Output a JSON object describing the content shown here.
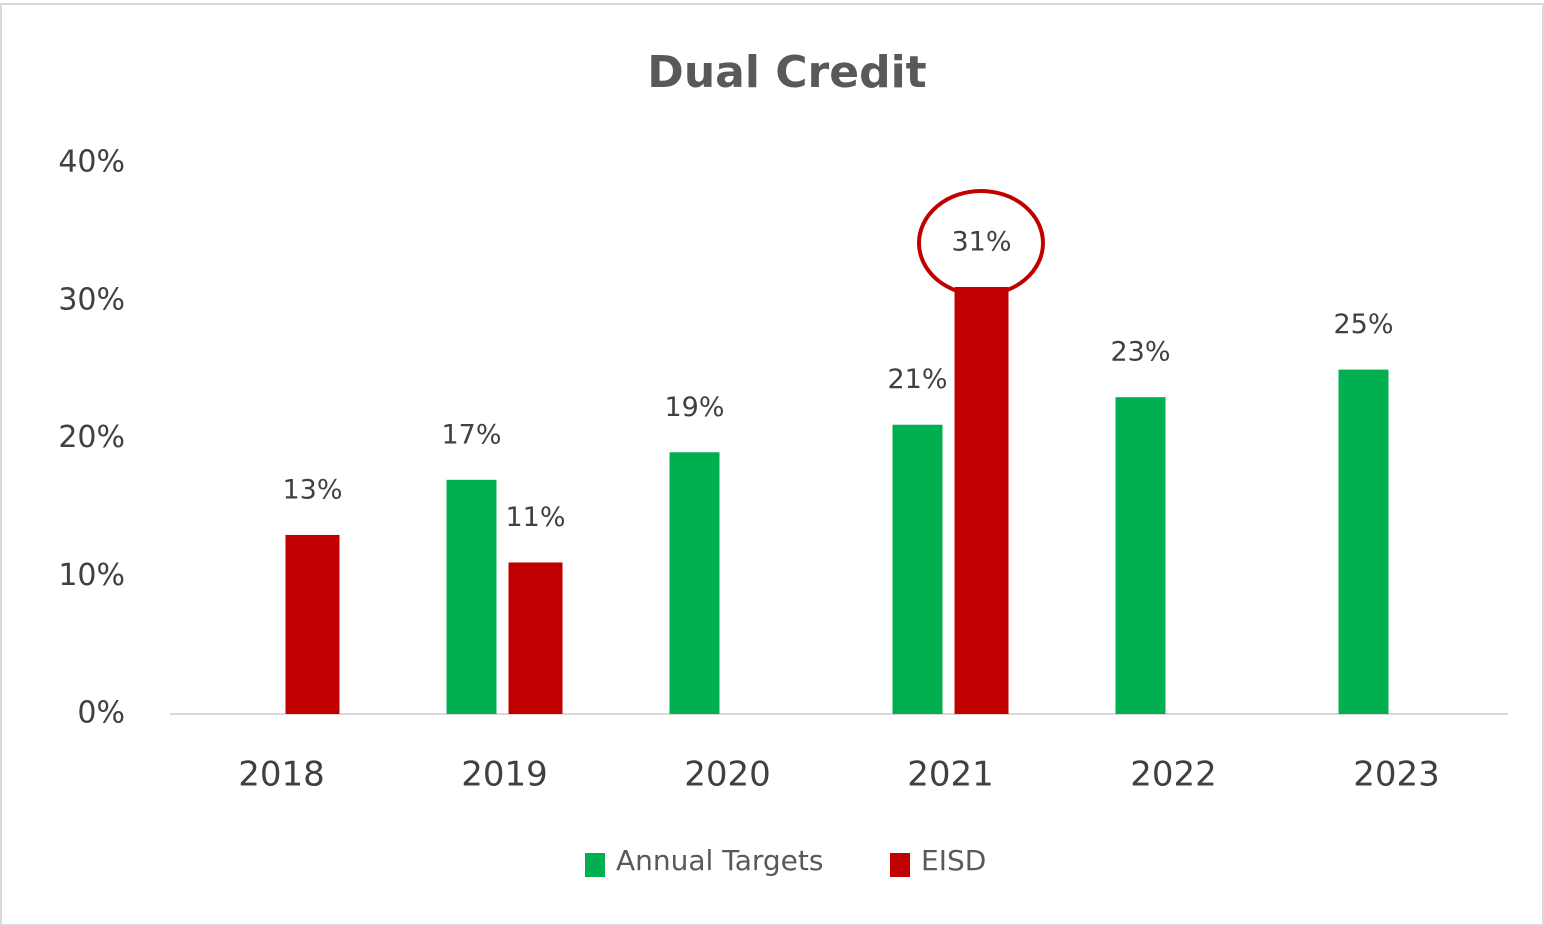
{
  "chart_data": {
    "type": "bar",
    "title": "Dual Credit",
    "categories": [
      "2018",
      "2019",
      "2020",
      "2021",
      "2022",
      "2023"
    ],
    "series": [
      {
        "name": "Annual Targets",
        "color": "#00b050",
        "values": [
          null,
          17,
          19,
          21,
          23,
          25
        ],
        "value_labels": [
          null,
          "17%",
          "19%",
          "21%",
          "23%",
          "25%"
        ]
      },
      {
        "name": "EISD",
        "color": "#c00000",
        "values": [
          13,
          11,
          null,
          31,
          null,
          null
        ],
        "value_labels": [
          "13%",
          "11%",
          null,
          "31%",
          null,
          null
        ]
      }
    ],
    "ylim": [
      0,
      40
    ],
    "yticks": [
      {
        "value": 0,
        "label": "0%"
      },
      {
        "value": 10,
        "label": "10%"
      },
      {
        "value": 20,
        "label": "20%"
      },
      {
        "value": 30,
        "label": "30%"
      },
      {
        "value": 40,
        "label": "40%"
      }
    ],
    "grid": false,
    "legend": "bottom"
  }
}
